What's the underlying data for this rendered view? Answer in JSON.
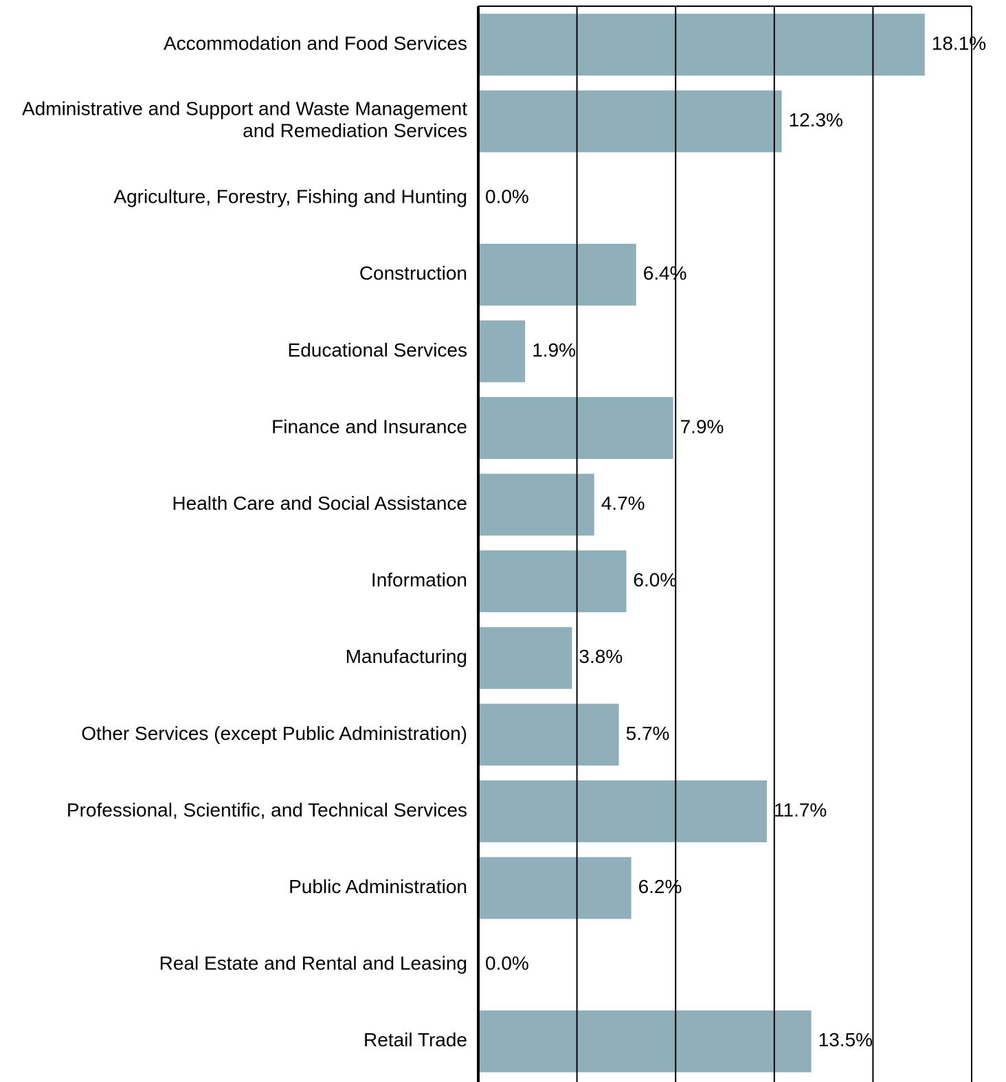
{
  "chart_data": {
    "type": "hbar",
    "categories": [
      "Accommodation and Food Services",
      "Administrative and Support and Waste Management\nand Remediation Services",
      "Agriculture, Forestry, Fishing and Hunting",
      "Construction",
      "Educational Services",
      "Finance and Insurance",
      "Health Care and Social Assistance",
      "Information",
      "Manufacturing",
      "Other Services (except Public Administration)",
      "Professional, Scientific, and Technical Services",
      "Public Administration",
      "Real Estate and Rental and Leasing",
      "Retail Trade"
    ],
    "values": [
      18.1,
      12.3,
      0.0,
      6.4,
      1.9,
      7.9,
      4.7,
      6.0,
      3.8,
      5.7,
      11.7,
      6.2,
      0.0,
      13.5
    ],
    "value_labels": [
      "18.1%",
      "12.3%",
      "0.0%",
      "6.4%",
      "1.9%",
      "7.9%",
      "4.7%",
      "6.0%",
      "3.8%",
      "5.7%",
      "11.7%",
      "6.2%",
      "0.0%",
      "13.5%"
    ],
    "color": "#8fafba",
    "xlim": [
      0,
      20
    ],
    "xticks": [
      0,
      4,
      8,
      12,
      16,
      20
    ],
    "grid": true
  }
}
